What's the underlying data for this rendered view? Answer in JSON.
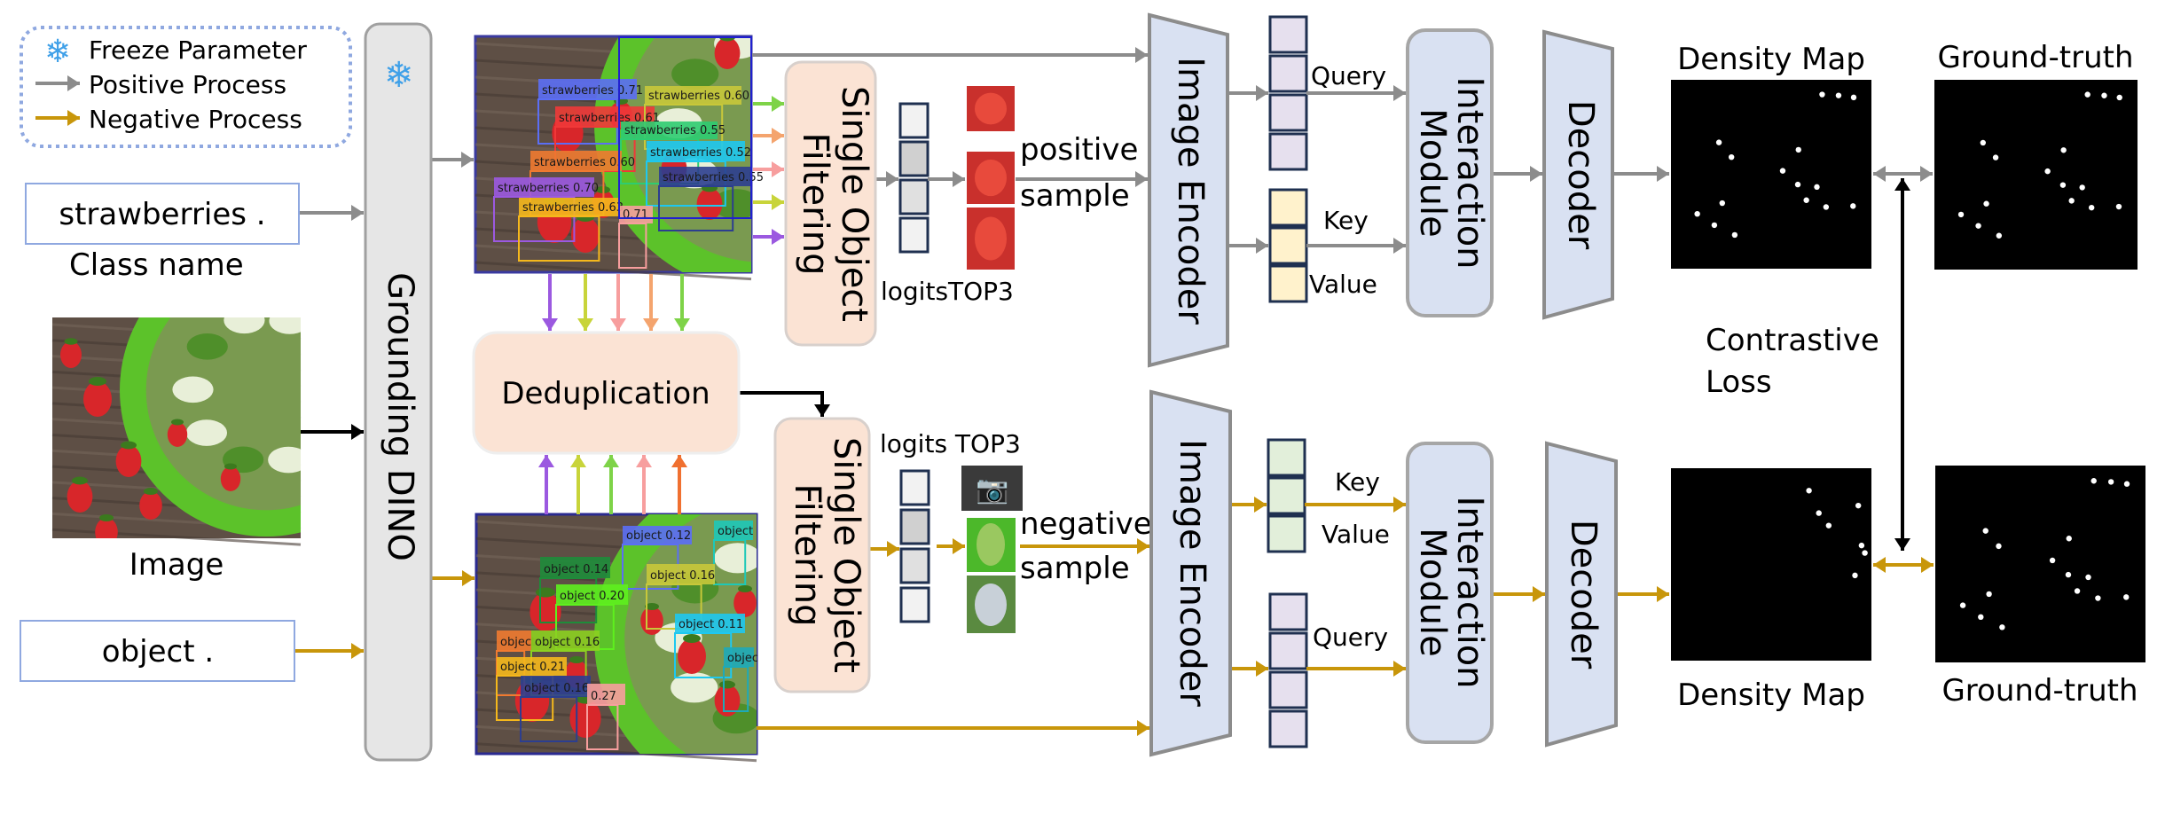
{
  "legend": {
    "freeze": "Freeze Parameter",
    "positive": "Positive Process",
    "negative": "Negative Process",
    "icons": [
      "snowflake-icon",
      "gray-arrow-icon",
      "gold-arrow-icon"
    ]
  },
  "inputs": {
    "class_text": "strawberries .",
    "class_caption": "Class name",
    "image_caption": "Image",
    "object_text": "object ."
  },
  "blocks": {
    "grounding_dino": "Grounding DINO",
    "sof_line1": "Single Object",
    "sof_line2": "Filtering",
    "deduplication": "Deduplication",
    "image_encoder": "Image Encoder",
    "interaction_line1": "Interaction",
    "interaction_line2": "Module",
    "decoder": "Decoder"
  },
  "positive_branch": {
    "logits_label": "logitsTOP3",
    "sample_line1": "positive",
    "sample_line2": "sample",
    "query": "Query",
    "key": "Key",
    "value": "Value",
    "density_label": "Density Map",
    "gt_label": "Ground-truth",
    "detections": [
      "strawberries 0.71",
      "strawberries 0.61",
      "strawberries 0.60",
      "strawberries 0.55",
      "strawberries 0.52",
      "strawberries 0.55",
      "strawberries 0.60",
      "strawberries 0.70",
      "strawberries 0.63",
      "0.71"
    ]
  },
  "negative_branch": {
    "logits_label": "logits TOP3",
    "sample_line1": "negative",
    "sample_line2": "sample",
    "query": "Query",
    "key": "Key",
    "value": "Value",
    "density_label": "Density Map",
    "gt_label": "Ground-truth",
    "detections": [
      "object 0.12",
      "object",
      "object 0.14",
      "object 0.16",
      "object 0.20",
      "object 0.11",
      "objec",
      "object",
      "object 0.16",
      "object 0.21",
      "object 0.16",
      "0.27"
    ]
  },
  "loss": {
    "line1": "Contrastive",
    "line2": "Loss"
  },
  "colors": {
    "positive_arrow": "#8c8c8c",
    "negative_arrow": "#c8960a",
    "block_peach": "#fbe3d4",
    "block_blue": "#d9e1f2",
    "dino_gray": "#e6e6e6",
    "snowflake": "#3fa0e8"
  }
}
